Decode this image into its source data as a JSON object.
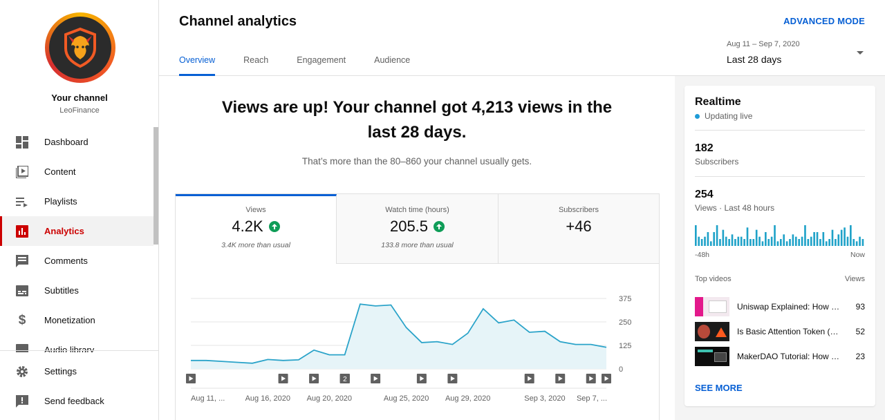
{
  "sidebar": {
    "channel_title": "Your channel",
    "channel_name": "LeoFinance",
    "items": [
      {
        "label": "Dashboard",
        "icon": "dashboard-icon"
      },
      {
        "label": "Content",
        "icon": "content-icon"
      },
      {
        "label": "Playlists",
        "icon": "playlists-icon"
      },
      {
        "label": "Analytics",
        "icon": "analytics-icon",
        "active": true
      },
      {
        "label": "Comments",
        "icon": "comments-icon"
      },
      {
        "label": "Subtitles",
        "icon": "subtitles-icon"
      },
      {
        "label": "Monetization",
        "icon": "monetization-icon"
      },
      {
        "label": "Audio library",
        "icon": "audio-library-icon"
      }
    ],
    "bottom": [
      {
        "label": "Settings",
        "icon": "gear-icon"
      },
      {
        "label": "Send feedback",
        "icon": "feedback-icon"
      }
    ]
  },
  "header": {
    "title": "Channel analytics",
    "advanced_mode": "ADVANCED MODE",
    "tabs": [
      "Overview",
      "Reach",
      "Engagement",
      "Audience"
    ],
    "date_range": "Aug 11 – Sep 7, 2020",
    "date_label": "Last 28 days"
  },
  "main": {
    "headline": "Views are up! Your channel got 4,213 views in the last 28 days.",
    "subline": "That’s more than the 80–860 your channel usually gets.",
    "metrics": [
      {
        "label": "Views",
        "value": "4.2K",
        "note": "3.4K more than usual",
        "trend": "up"
      },
      {
        "label": "Watch time (hours)",
        "value": "205.5",
        "note": "133.8 more than usual",
        "trend": "up"
      },
      {
        "label": "Subscribers",
        "value": "+46",
        "note": ""
      }
    ]
  },
  "chart_data": {
    "type": "area",
    "x": [
      "Aug 11",
      "Aug 12",
      "Aug 13",
      "Aug 14",
      "Aug 15",
      "Aug 16",
      "Aug 17",
      "Aug 18",
      "Aug 19",
      "Aug 20",
      "Aug 21",
      "Aug 22",
      "Aug 23",
      "Aug 24",
      "Aug 25",
      "Aug 26",
      "Aug 27",
      "Aug 28",
      "Aug 29",
      "Aug 30",
      "Aug 31",
      "Sep 1",
      "Sep 2",
      "Sep 3",
      "Sep 4",
      "Sep 5",
      "Sep 6",
      "Sep 7"
    ],
    "values": [
      45,
      45,
      40,
      35,
      30,
      50,
      45,
      48,
      100,
      75,
      75,
      345,
      335,
      340,
      220,
      140,
      145,
      130,
      190,
      320,
      245,
      260,
      195,
      200,
      145,
      130,
      130,
      115
    ],
    "x_tick_labels": [
      "Aug 11, ...",
      "Aug 16, 2020",
      "Aug 20, 2020",
      "Aug 25, 2020",
      "Aug 29, 2020",
      "Sep 3, 2020",
      "Sep 7, ..."
    ],
    "y_ticks": [
      0,
      125,
      250,
      375
    ],
    "ylim": [
      0,
      375
    ],
    "video_markers": [
      0,
      6,
      8,
      10,
      11,
      12,
      15,
      17,
      22,
      24,
      26,
      27
    ],
    "marker_badge": {
      "index": 11,
      "label": "2"
    },
    "line_color": "#2aa3c9",
    "fill_color": "#e6f4f8"
  },
  "realtime": {
    "title": "Realtime",
    "live_label": "Updating live",
    "subscribers_value": "182",
    "subscribers_label": "Subscribers",
    "views_value": "254",
    "views_label": "Views · Last 48 hours",
    "bars": [
      9,
      4,
      3,
      4,
      6,
      2,
      6,
      9,
      3,
      7,
      4,
      3,
      5,
      3,
      4,
      4,
      3,
      8,
      3,
      3,
      7,
      4,
      2,
      6,
      3,
      4,
      9,
      2,
      3,
      5,
      2,
      3,
      5,
      4,
      3,
      4,
      9,
      3,
      4,
      6,
      6,
      3,
      6,
      2,
      3,
      7,
      3,
      5,
      7,
      8,
      4,
      9,
      3,
      2,
      4,
      3
    ],
    "bars_max": 9,
    "bar_color": "#1fa2c8",
    "axis_left": "-48h",
    "axis_right": "Now",
    "top_videos_label": "Top videos",
    "views_col_label": "Views",
    "videos": [
      {
        "title": "Uniswap Explained: How to...",
        "views": "93"
      },
      {
        "title": "Is Basic Attention Token (B...",
        "views": "52"
      },
      {
        "title": "MakerDAO Tutorial: How to...",
        "views": "23"
      }
    ],
    "see_more": "SEE MORE"
  }
}
